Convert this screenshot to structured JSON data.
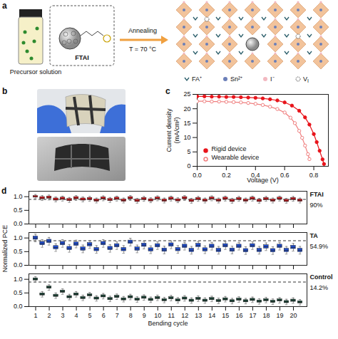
{
  "panels": {
    "a": {
      "letter": "a",
      "labels": {
        "vial": "Precursor solution",
        "molecule": "FTAI",
        "arrow_top": "Annealing",
        "arrow_bottom": "T = 70 °C"
      },
      "legend": [
        {
          "text": "FA⁺"
        },
        {
          "text": "Sn²⁺"
        },
        {
          "text": "I⁻"
        },
        {
          "text": "V",
          "subscript": "I"
        }
      ]
    },
    "b": {
      "letter": "b"
    }
  },
  "chart_data": [
    {
      "type": "line",
      "panel_letter": "c",
      "x_label": "Voltage (V)",
      "y_label": "Current density (mA/cm²)",
      "xlim": [
        0,
        0.9
      ],
      "xticks": [
        {
          "value": 0,
          "label": "0.0"
        },
        0.2,
        0.4,
        0.6,
        0.8
      ],
      "ylim": [
        0,
        25
      ],
      "yticks": [
        0,
        5,
        10,
        15,
        20,
        25
      ],
      "legend": "bottom-left",
      "series": [
        {
          "name": "Rigid device",
          "color": "#e8141b",
          "marker": "circle",
          "x": [
            0,
            0.05,
            0.1,
            0.15,
            0.2,
            0.25,
            0.3,
            0.35,
            0.4,
            0.45,
            0.5,
            0.55,
            0.6,
            0.65,
            0.7,
            0.74,
            0.77,
            0.8,
            0.82,
            0.84,
            0.86,
            0.87
          ],
          "values": [
            24.3,
            24.3,
            24.2,
            24.2,
            24.1,
            24.1,
            24.0,
            23.9,
            23.8,
            23.6,
            23.3,
            22.9,
            22.2,
            21.1,
            19.3,
            17.0,
            14.5,
            11.2,
            8.4,
            5.4,
            2.4,
            0.8
          ]
        },
        {
          "name": "Wearable device",
          "color": "#f07f7f",
          "marker": "open circle",
          "x": [
            0,
            0.05,
            0.1,
            0.15,
            0.2,
            0.25,
            0.3,
            0.35,
            0.4,
            0.45,
            0.5,
            0.55,
            0.6,
            0.64,
            0.67,
            0.7,
            0.72,
            0.74,
            0.76,
            0.77
          ],
          "values": [
            22.6,
            22.6,
            22.5,
            22.5,
            22.4,
            22.3,
            22.2,
            22.0,
            21.7,
            21.3,
            20.7,
            19.9,
            18.7,
            16.9,
            15.0,
            12.3,
            9.9,
            7.2,
            4.2,
            2.5
          ]
        }
      ]
    },
    {
      "type": "box",
      "panel_letter": "d",
      "xlim": [
        0.5,
        21
      ],
      "xticks": [
        1,
        2,
        3,
        4,
        5,
        6,
        7,
        8,
        9,
        10,
        11,
        12,
        13,
        14,
        15,
        16,
        17,
        18,
        19,
        20
      ],
      "ylim": [
        0,
        1.2
      ],
      "yticks": [
        {
          "value": 0,
          "label": "0.0"
        },
        0.5,
        {
          "value": 1,
          "label": "1.0"
        }
      ],
      "tick_labels": "y",
      "reference_line": 0.9,
      "annotations": [
        "90%"
      ],
      "series": [
        {
          "name": "FTAI",
          "color": "#e8141b",
          "x": [
            1,
            1.5,
            2,
            2.5,
            3,
            3.5,
            4,
            4.5,
            5,
            5.5,
            6,
            6.5,
            7,
            7.5,
            8,
            8.5,
            9,
            9.5,
            10,
            10.5,
            11,
            11.5,
            12,
            12.5,
            13,
            13.5,
            14,
            14.5,
            15,
            15.5,
            16,
            16.5,
            17,
            17.5,
            18,
            18.5,
            19,
            19.5,
            20,
            20.5
          ],
          "whisker_low": [
            0.93,
            0.86,
            0.88,
            0.81,
            0.84,
            0.79,
            0.86,
            0.81,
            0.83,
            0.77,
            0.85,
            0.79,
            0.84,
            0.77,
            0.86,
            0.76,
            0.83,
            0.78,
            0.85,
            0.77,
            0.84,
            0.78,
            0.86,
            0.76,
            0.83,
            0.77,
            0.85,
            0.77,
            0.84,
            0.76,
            0.83,
            0.77,
            0.84,
            0.76,
            0.83,
            0.77,
            0.84,
            0.76,
            0.83,
            0.77
          ],
          "q1": [
            0.97,
            0.91,
            0.93,
            0.86,
            0.89,
            0.84,
            0.91,
            0.86,
            0.88,
            0.82,
            0.9,
            0.84,
            0.89,
            0.82,
            0.91,
            0.81,
            0.88,
            0.83,
            0.9,
            0.82,
            0.89,
            0.83,
            0.91,
            0.81,
            0.88,
            0.82,
            0.9,
            0.82,
            0.89,
            0.81,
            0.88,
            0.82,
            0.89,
            0.81,
            0.88,
            0.82,
            0.89,
            0.81,
            0.88,
            0.82
          ],
          "median": [
            1.0,
            0.95,
            0.97,
            0.9,
            0.93,
            0.88,
            0.95,
            0.9,
            0.92,
            0.86,
            0.94,
            0.88,
            0.93,
            0.86,
            0.95,
            0.85,
            0.92,
            0.87,
            0.94,
            0.86,
            0.93,
            0.87,
            0.95,
            0.85,
            0.92,
            0.86,
            0.94,
            0.86,
            0.93,
            0.85,
            0.92,
            0.86,
            0.93,
            0.85,
            0.92,
            0.86,
            0.93,
            0.85,
            0.92,
            0.86
          ],
          "q3": [
            1.03,
            0.99,
            1.01,
            0.94,
            0.97,
            0.92,
            0.99,
            0.94,
            0.96,
            0.9,
            0.98,
            0.92,
            0.97,
            0.9,
            0.99,
            0.89,
            0.96,
            0.91,
            0.98,
            0.9,
            0.97,
            0.91,
            0.99,
            0.89,
            0.96,
            0.9,
            0.98,
            0.9,
            0.97,
            0.89,
            0.96,
            0.9,
            0.97,
            0.89,
            0.96,
            0.9,
            0.97,
            0.89,
            0.96,
            0.9
          ],
          "whisker_high": [
            1.08,
            1.04,
            1.06,
            0.99,
            1.02,
            0.97,
            1.04,
            0.99,
            1.01,
            0.95,
            1.03,
            0.97,
            1.02,
            0.95,
            1.04,
            0.94,
            1.01,
            0.96,
            1.03,
            0.95,
            1.02,
            0.96,
            1.04,
            0.94,
            1.01,
            0.95,
            1.03,
            0.95,
            1.02,
            0.94,
            1.01,
            0.95,
            1.02,
            0.94,
            1.01,
            0.95,
            1.02,
            0.94,
            1.01,
            0.95
          ]
        }
      ]
    },
    {
      "type": "box",
      "y_label": "Normalized PCE",
      "xlim": [
        0.5,
        21
      ],
      "xticks": [
        1,
        2,
        3,
        4,
        5,
        6,
        7,
        8,
        9,
        10,
        11,
        12,
        13,
        14,
        15,
        16,
        17,
        18,
        19,
        20
      ],
      "ylim": [
        0,
        1.2
      ],
      "yticks": [
        {
          "value": 0,
          "label": "0.0"
        },
        0.5,
        {
          "value": 1,
          "label": "1.0"
        }
      ],
      "tick_labels": "y",
      "reference_line": 0.9,
      "annotations": [
        "54.9%"
      ],
      "series": [
        {
          "name": "TA",
          "color": "#1f4fd8",
          "x": [
            1,
            1.5,
            2,
            2.5,
            3,
            3.5,
            4,
            4.5,
            5,
            5.5,
            6,
            6.5,
            7,
            7.5,
            8,
            8.5,
            9,
            9.5,
            10,
            10.5,
            11,
            11.5,
            12,
            12.5,
            13,
            13.5,
            14,
            14.5,
            15,
            15.5,
            16,
            16.5,
            17,
            17.5,
            18,
            18.5,
            19,
            19.5,
            20,
            20.5
          ],
          "whisker_low": [
            0.86,
            0.66,
            0.74,
            0.51,
            0.66,
            0.48,
            0.64,
            0.46,
            0.62,
            0.44,
            0.66,
            0.48,
            0.58,
            0.44,
            0.71,
            0.46,
            0.6,
            0.43,
            0.58,
            0.42,
            0.61,
            0.44,
            0.56,
            0.41,
            0.59,
            0.43,
            0.56,
            0.41,
            0.58,
            0.42,
            0.56,
            0.4,
            0.58,
            0.41,
            0.54,
            0.4,
            0.56,
            0.41,
            0.52,
            0.41
          ],
          "q1": [
            0.94,
            0.74,
            0.82,
            0.59,
            0.74,
            0.56,
            0.72,
            0.54,
            0.7,
            0.52,
            0.74,
            0.56,
            0.66,
            0.52,
            0.79,
            0.54,
            0.68,
            0.51,
            0.66,
            0.5,
            0.69,
            0.52,
            0.64,
            0.49,
            0.67,
            0.51,
            0.64,
            0.49,
            0.66,
            0.5,
            0.64,
            0.48,
            0.66,
            0.49,
            0.62,
            0.48,
            0.64,
            0.49,
            0.6,
            0.49
          ],
          "median": [
            1.0,
            0.8,
            0.88,
            0.65,
            0.8,
            0.62,
            0.78,
            0.6,
            0.76,
            0.58,
            0.8,
            0.62,
            0.72,
            0.58,
            0.85,
            0.6,
            0.74,
            0.57,
            0.72,
            0.56,
            0.75,
            0.58,
            0.7,
            0.55,
            0.73,
            0.57,
            0.7,
            0.55,
            0.72,
            0.56,
            0.7,
            0.54,
            0.72,
            0.55,
            0.68,
            0.54,
            0.7,
            0.55,
            0.66,
            0.55
          ],
          "q3": [
            1.06,
            0.86,
            0.94,
            0.71,
            0.86,
            0.68,
            0.84,
            0.66,
            0.82,
            0.64,
            0.86,
            0.68,
            0.78,
            0.64,
            0.91,
            0.66,
            0.8,
            0.63,
            0.78,
            0.62,
            0.81,
            0.64,
            0.76,
            0.61,
            0.79,
            0.63,
            0.76,
            0.61,
            0.78,
            0.62,
            0.76,
            0.6,
            0.78,
            0.61,
            0.74,
            0.6,
            0.76,
            0.61,
            0.72,
            0.61
          ],
          "whisker_high": [
            1.14,
            0.94,
            1.02,
            0.79,
            0.94,
            0.76,
            0.92,
            0.74,
            0.9,
            0.72,
            0.94,
            0.76,
            0.86,
            0.72,
            0.99,
            0.74,
            0.88,
            0.71,
            0.86,
            0.7,
            0.89,
            0.72,
            0.84,
            0.69,
            0.87,
            0.71,
            0.84,
            0.69,
            0.86,
            0.7,
            0.84,
            0.68,
            0.86,
            0.69,
            0.82,
            0.68,
            0.84,
            0.69,
            0.8,
            0.69
          ]
        }
      ]
    },
    {
      "type": "box",
      "x_label": "Bending cycle",
      "xlim": [
        0.5,
        21
      ],
      "xticks": [
        1,
        2,
        3,
        4,
        5,
        6,
        7,
        8,
        9,
        10,
        11,
        12,
        13,
        14,
        15,
        16,
        17,
        18,
        19,
        20
      ],
      "ylim": [
        0,
        1.2
      ],
      "yticks": [
        {
          "value": 0,
          "label": "0.0"
        },
        0.5,
        {
          "value": 1,
          "label": "1.0"
        }
      ],
      "reference_line": 0.9,
      "annotations": [
        "14.2%"
      ],
      "series": [
        {
          "name": "Control",
          "color": "#1a4a3a",
          "x": [
            1,
            1.5,
            2,
            2.5,
            3,
            3.5,
            4,
            4.5,
            5,
            5.5,
            6,
            6.5,
            7,
            7.5,
            8,
            8.5,
            9,
            9.5,
            10,
            10.5,
            11,
            11.5,
            12,
            12.5,
            13,
            13.5,
            14,
            14.5,
            15,
            15.5,
            16,
            16.5,
            17,
            17.5,
            18,
            18.5,
            19,
            19.5,
            20,
            20.5
          ],
          "whisker_low": [
            0.9,
            0.35,
            0.6,
            0.3,
            0.45,
            0.25,
            0.35,
            0.22,
            0.32,
            0.2,
            0.28,
            0.18,
            0.26,
            0.17,
            0.25,
            0.16,
            0.23,
            0.15,
            0.22,
            0.14,
            0.21,
            0.13,
            0.2,
            0.12,
            0.19,
            0.12,
            0.18,
            0.11,
            0.17,
            0.1,
            0.16,
            0.1,
            0.15,
            0.09,
            0.14,
            0.08,
            0.13,
            0.07,
            0.12,
            0.06
          ],
          "q1": [
            0.96,
            0.41,
            0.66,
            0.36,
            0.51,
            0.31,
            0.41,
            0.28,
            0.38,
            0.26,
            0.34,
            0.24,
            0.32,
            0.23,
            0.31,
            0.22,
            0.29,
            0.21,
            0.28,
            0.2,
            0.27,
            0.19,
            0.26,
            0.18,
            0.25,
            0.18,
            0.24,
            0.17,
            0.23,
            0.16,
            0.22,
            0.16,
            0.21,
            0.15,
            0.2,
            0.14,
            0.19,
            0.13,
            0.18,
            0.12
          ],
          "median": [
            1.0,
            0.45,
            0.7,
            0.4,
            0.55,
            0.35,
            0.45,
            0.32,
            0.42,
            0.3,
            0.38,
            0.28,
            0.36,
            0.27,
            0.35,
            0.26,
            0.33,
            0.25,
            0.32,
            0.24,
            0.31,
            0.23,
            0.3,
            0.22,
            0.29,
            0.22,
            0.28,
            0.21,
            0.27,
            0.2,
            0.26,
            0.2,
            0.25,
            0.19,
            0.24,
            0.18,
            0.23,
            0.17,
            0.22,
            0.16
          ],
          "q3": [
            1.04,
            0.49,
            0.74,
            0.44,
            0.59,
            0.39,
            0.49,
            0.36,
            0.46,
            0.34,
            0.42,
            0.32,
            0.4,
            0.31,
            0.39,
            0.3,
            0.37,
            0.29,
            0.36,
            0.28,
            0.35,
            0.27,
            0.34,
            0.26,
            0.33,
            0.26,
            0.32,
            0.25,
            0.31,
            0.24,
            0.3,
            0.24,
            0.29,
            0.23,
            0.28,
            0.22,
            0.27,
            0.21,
            0.26,
            0.2
          ],
          "whisker_high": [
            1.1,
            0.55,
            0.8,
            0.5,
            0.65,
            0.45,
            0.55,
            0.42,
            0.52,
            0.4,
            0.48,
            0.38,
            0.46,
            0.37,
            0.45,
            0.36,
            0.43,
            0.35,
            0.42,
            0.34,
            0.41,
            0.33,
            0.4,
            0.32,
            0.39,
            0.32,
            0.38,
            0.31,
            0.37,
            0.3,
            0.36,
            0.3,
            0.35,
            0.29,
            0.34,
            0.28,
            0.33,
            0.27,
            0.32,
            0.26
          ]
        }
      ]
    }
  ]
}
